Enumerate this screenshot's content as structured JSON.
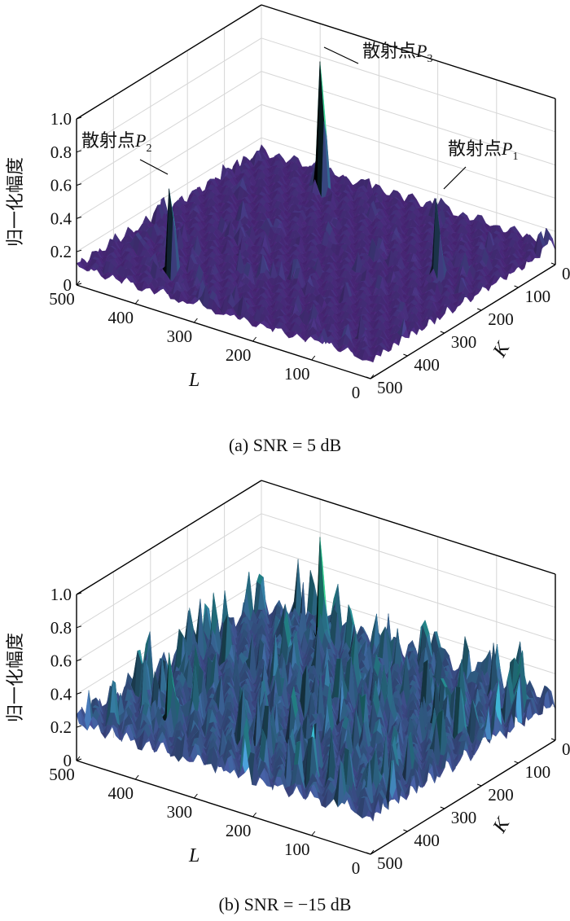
{
  "chart_data": [
    {
      "type": "surface",
      "caption": "(a) SNR = 5 dB",
      "zlabel": "归一化幅度",
      "xlabel": "L",
      "ylabel": "K",
      "zlim": [
        0,
        1.0
      ],
      "xlim": [
        0,
        500
      ],
      "ylim": [
        0,
        500
      ],
      "z_ticks": [
        "0",
        "0.2",
        "0.4",
        "0.6",
        "0.8",
        "1.0"
      ],
      "x_ticks": [
        "0",
        "100",
        "200",
        "300",
        "400",
        "500"
      ],
      "y_ticks": [
        "0",
        "100",
        "200",
        "300",
        "400",
        "500"
      ],
      "grid": true,
      "colormap": "viridis",
      "background_level": 0.15,
      "peaks": [
        {
          "label": "散射点",
          "sub": "3",
          "L": 360,
          "K": 60,
          "amplitude": 1.0
        },
        {
          "label": "散射点",
          "sub": "2",
          "L": 380,
          "K": 435,
          "amplitude": 0.72
        },
        {
          "label": "散射点",
          "sub": "1",
          "L": 75,
          "K": 200,
          "amplitude": 0.62
        }
      ]
    },
    {
      "type": "surface",
      "caption": "(b) SNR = −15 dB",
      "zlabel": "归一化幅度",
      "xlabel": "L",
      "ylabel": "K",
      "zlim": [
        0,
        1.0
      ],
      "xlim": [
        0,
        500
      ],
      "ylim": [
        0,
        500
      ],
      "z_ticks": [
        "0",
        "0.2",
        "0.4",
        "0.6",
        "0.8",
        "1.0"
      ],
      "x_ticks": [
        "0",
        "100",
        "200",
        "300",
        "400",
        "500"
      ],
      "y_ticks": [
        "0",
        "100",
        "200",
        "300",
        "400",
        "500"
      ],
      "grid": true,
      "colormap": "viridis",
      "background_level": 0.35,
      "peaks": [
        {
          "L": 360,
          "K": 60,
          "amplitude": 1.0
        },
        {
          "L": 380,
          "K": 435,
          "amplitude": 0.8
        },
        {
          "L": 75,
          "K": 200,
          "amplitude": 0.6
        }
      ]
    }
  ]
}
